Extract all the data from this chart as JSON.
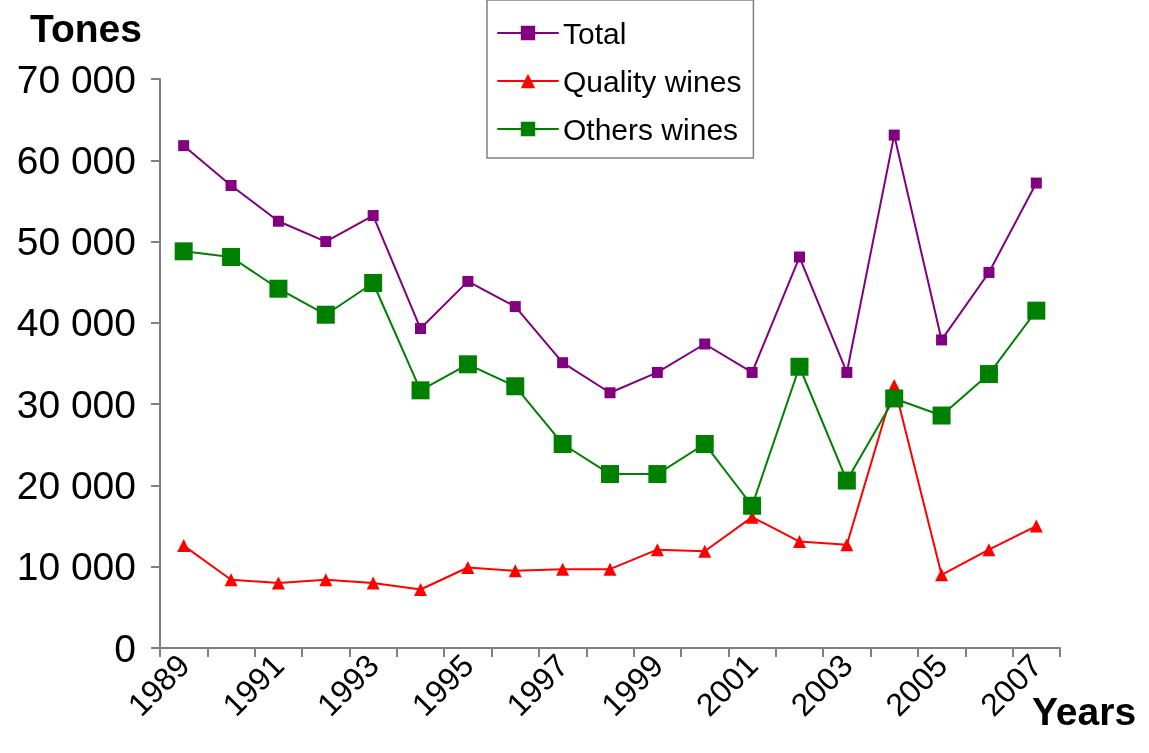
{
  "chart_data": {
    "type": "line",
    "xlabel": "Years",
    "ylabel": "Tones",
    "categories": [
      "1989",
      null,
      "1991",
      null,
      "1993",
      null,
      "1995",
      null,
      "1997",
      null,
      "1999",
      null,
      "2001",
      null,
      "2003",
      null,
      "2005",
      null,
      "2007"
    ],
    "series": [
      {
        "name": "Total",
        "color": "#800080",
        "marker": "square",
        "values": [
          61800,
          56900,
          52500,
          50000,
          53200,
          39300,
          45100,
          42000,
          35100,
          31400,
          33900,
          37400,
          33900,
          48100,
          33900,
          63100,
          37900,
          46200,
          57200
        ]
      },
      {
        "name": "Quality wines",
        "color": "#ff0000",
        "marker": "triangle",
        "values": [
          12600,
          8400,
          8000,
          8400,
          8000,
          7200,
          9900,
          9500,
          9700,
          9700,
          12100,
          11900,
          16100,
          13100,
          12700,
          32300,
          9000,
          12100,
          15000
        ]
      },
      {
        "name": "Others wines",
        "color": "#008000",
        "marker": "square",
        "values": [
          48800,
          48100,
          44200,
          41000,
          44900,
          31700,
          34900,
          32200,
          25100,
          21400,
          21400,
          25100,
          17500,
          34600,
          20600,
          30700,
          28600,
          33700,
          41500
        ]
      }
    ],
    "ylim": [
      0,
      70000
    ],
    "yticks": [
      {
        "value": 0,
        "label": "0"
      },
      {
        "value": 10000,
        "label": "10 000"
      },
      {
        "value": 20000,
        "label": "20 000"
      },
      {
        "value": 30000,
        "label": "30 000"
      },
      {
        "value": 40000,
        "label": "40 000"
      },
      {
        "value": 50000,
        "label": "50 000"
      },
      {
        "value": 60000,
        "label": "60 000"
      },
      {
        "value": 70000,
        "label": "70 000"
      }
    ],
    "grid": false,
    "legend": "top",
    "line_style": "solid"
  }
}
